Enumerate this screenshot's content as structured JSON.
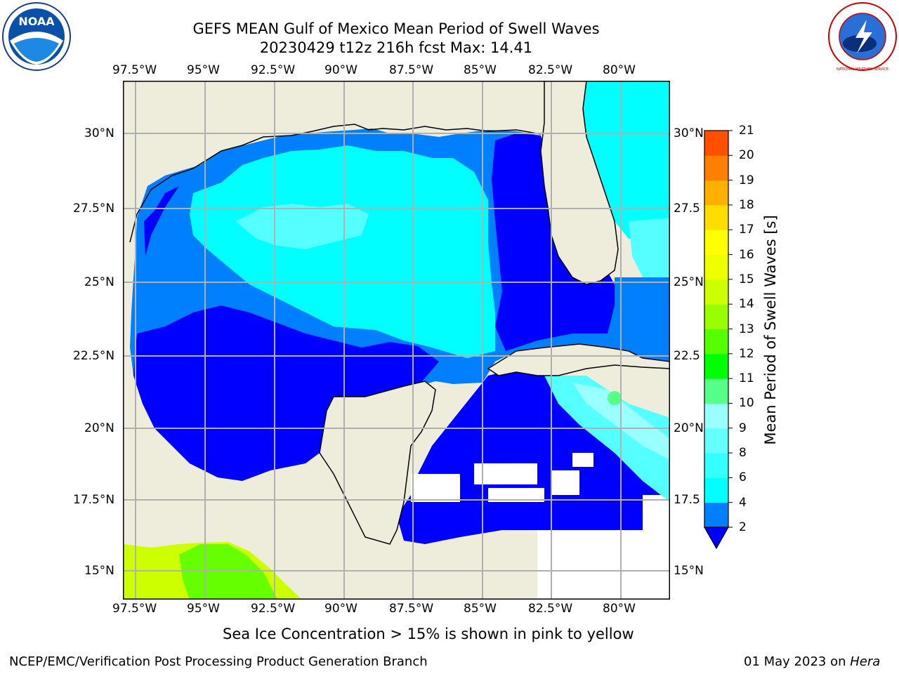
{
  "header": {
    "title_line1": "GEFS MEAN Gulf of Mexico Mean Period of Swell Waves",
    "title_line2": "20230429 t12z 216h fcst   Max: 14.41",
    "left_logo": "noara-logo",
    "left_logo_text": "NOAA",
    "right_logo": "nws-logo",
    "right_logo_text": "NATIONAL WEATHER SERVICE"
  },
  "map": {
    "lon_labels": [
      "97.5°W",
      "95°W",
      "92.5°W",
      "90°W",
      "87.5°W",
      "85°W",
      "82.5°W",
      "80°W"
    ],
    "lat_labels_left": [
      "30°N",
      "27.5°N",
      "25°N",
      "22.5°N",
      "20°N",
      "17.5°N",
      "15°N"
    ],
    "lat_labels_right": [
      "30°N",
      "27.5",
      "25°N",
      "22.5",
      "20°N",
      "17.5",
      "15°N"
    ],
    "colors": {
      "land": "#eeeddc",
      "blue_dark": "#0000ff",
      "blue_mid": "#0080ff",
      "cyan": "#00ffff",
      "cyan_light": "#55ffff",
      "green_bright": "#66ff00",
      "yellow_green": "#ccff00",
      "grid": "#b0b0b0"
    }
  },
  "colorbar": {
    "label": "Mean Period of Swell Waves [s]",
    "ticks": [
      "2",
      "4",
      "6",
      "8",
      "9",
      "10",
      "11",
      "12",
      "13",
      "14",
      "15",
      "16",
      "17",
      "18",
      "19",
      "20",
      "21"
    ],
    "colors": [
      "#0080ff",
      "#00ffff",
      "#33ffff",
      "#66ffff",
      "#99ffff",
      "#55ff88",
      "#00ff00",
      "#55ff00",
      "#99ff00",
      "#ccff00",
      "#eeff00",
      "#ffff00",
      "#ffdd00",
      "#ffb000",
      "#ff8000",
      "#ff5000",
      "#ff2000",
      "#ff0000"
    ]
  },
  "footer": {
    "note": "Sea Ice Concentration > 15% is shown in pink to yellow",
    "left": "NCEP/EMC/Verification Post Processing Product Generation Branch",
    "right_date": "01 May 2023 on ",
    "right_machine": "Hera"
  }
}
